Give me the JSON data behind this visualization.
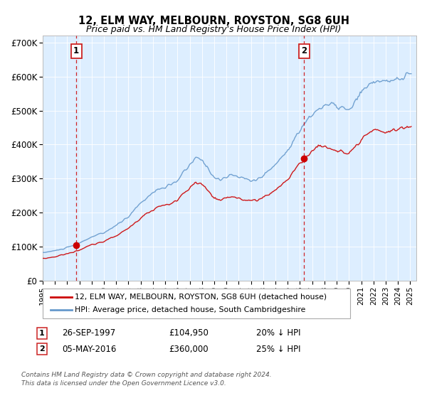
{
  "title": "12, ELM WAY, MELBOURN, ROYSTON, SG8 6UH",
  "subtitle": "Price paid vs. HM Land Registry's House Price Index (HPI)",
  "xlim": [
    1995.0,
    2025.5
  ],
  "ylim": [
    0,
    720000
  ],
  "yticks": [
    0,
    100000,
    200000,
    300000,
    400000,
    500000,
    600000,
    700000
  ],
  "ytick_labels": [
    "£0",
    "£100K",
    "£200K",
    "£300K",
    "£400K",
    "£500K",
    "£600K",
    "£700K"
  ],
  "xticks": [
    1995,
    1996,
    1997,
    1998,
    1999,
    2000,
    2001,
    2002,
    2003,
    2004,
    2005,
    2006,
    2007,
    2008,
    2009,
    2010,
    2011,
    2012,
    2013,
    2014,
    2015,
    2016,
    2017,
    2018,
    2019,
    2020,
    2021,
    2022,
    2023,
    2024,
    2025
  ],
  "sale1_x": 1997.74,
  "sale1_y": 104950,
  "sale1_label": "1",
  "sale1_date": "26-SEP-1997",
  "sale1_price": "£104,950",
  "sale1_hpi": "20% ↓ HPI",
  "sale2_x": 2016.34,
  "sale2_y": 360000,
  "sale2_label": "2",
  "sale2_date": "05-MAY-2016",
  "sale2_price": "£360,000",
  "sale2_hpi": "25% ↓ HPI",
  "red_color": "#cc0000",
  "blue_color": "#6699cc",
  "plot_bg": "#ddeeff",
  "legend_label_red": "12, ELM WAY, MELBOURN, ROYSTON, SG8 6UH (detached house)",
  "legend_label_blue": "HPI: Average price, detached house, South Cambridgeshire",
  "footnote1": "Contains HM Land Registry data © Crown copyright and database right 2024.",
  "footnote2": "This data is licensed under the Open Government Licence v3.0.",
  "hpi_keypoints": [
    [
      1995.0,
      82000
    ],
    [
      1995.5,
      85000
    ],
    [
      1996.0,
      88000
    ],
    [
      1996.5,
      92000
    ],
    [
      1997.0,
      97000
    ],
    [
      1997.5,
      103000
    ],
    [
      1998.0,
      110000
    ],
    [
      1998.5,
      120000
    ],
    [
      1999.0,
      128000
    ],
    [
      1999.5,
      135000
    ],
    [
      2000.0,
      140000
    ],
    [
      2000.5,
      152000
    ],
    [
      2001.0,
      162000
    ],
    [
      2001.5,
      175000
    ],
    [
      2002.0,
      188000
    ],
    [
      2002.5,
      210000
    ],
    [
      2003.0,
      228000
    ],
    [
      2003.5,
      245000
    ],
    [
      2004.0,
      258000
    ],
    [
      2004.5,
      270000
    ],
    [
      2005.0,
      275000
    ],
    [
      2005.5,
      280000
    ],
    [
      2006.0,
      295000
    ],
    [
      2006.5,
      318000
    ],
    [
      2007.0,
      340000
    ],
    [
      2007.5,
      360000
    ],
    [
      2008.0,
      355000
    ],
    [
      2008.5,
      330000
    ],
    [
      2009.0,
      305000
    ],
    [
      2009.5,
      295000
    ],
    [
      2010.0,
      305000
    ],
    [
      2010.5,
      310000
    ],
    [
      2011.0,
      305000
    ],
    [
      2011.5,
      300000
    ],
    [
      2012.0,
      295000
    ],
    [
      2012.5,
      298000
    ],
    [
      2013.0,
      308000
    ],
    [
      2013.5,
      325000
    ],
    [
      2014.0,
      342000
    ],
    [
      2014.5,
      362000
    ],
    [
      2015.0,
      385000
    ],
    [
      2015.5,
      415000
    ],
    [
      2016.0,
      440000
    ],
    [
      2016.5,
      468000
    ],
    [
      2017.0,
      488000
    ],
    [
      2017.5,
      505000
    ],
    [
      2018.0,
      515000
    ],
    [
      2018.5,
      518000
    ],
    [
      2019.0,
      512000
    ],
    [
      2019.5,
      508000
    ],
    [
      2020.0,
      498000
    ],
    [
      2020.5,
      525000
    ],
    [
      2021.0,
      552000
    ],
    [
      2021.5,
      572000
    ],
    [
      2022.0,
      585000
    ],
    [
      2022.5,
      590000
    ],
    [
      2023.0,
      582000
    ],
    [
      2023.5,
      586000
    ],
    [
      2024.0,
      592000
    ],
    [
      2024.5,
      600000
    ],
    [
      2025.0,
      608000
    ]
  ],
  "red_keypoints": [
    [
      1995.0,
      65000
    ],
    [
      1995.5,
      67000
    ],
    [
      1996.0,
      70000
    ],
    [
      1996.5,
      75000
    ],
    [
      1997.0,
      79000
    ],
    [
      1997.5,
      84000
    ],
    [
      1998.0,
      90000
    ],
    [
      1998.5,
      98000
    ],
    [
      1999.0,
      105000
    ],
    [
      1999.5,
      110000
    ],
    [
      2000.0,
      115000
    ],
    [
      2000.5,
      124000
    ],
    [
      2001.0,
      132000
    ],
    [
      2001.5,
      143000
    ],
    [
      2002.0,
      153000
    ],
    [
      2002.5,
      170000
    ],
    [
      2003.0,
      185000
    ],
    [
      2003.5,
      198000
    ],
    [
      2004.0,
      208000
    ],
    [
      2004.5,
      218000
    ],
    [
      2005.0,
      222000
    ],
    [
      2005.5,
      226000
    ],
    [
      2006.0,
      238000
    ],
    [
      2006.5,
      255000
    ],
    [
      2007.0,
      272000
    ],
    [
      2007.5,
      288000
    ],
    [
      2008.0,
      283000
    ],
    [
      2008.5,
      263000
    ],
    [
      2009.0,
      243000
    ],
    [
      2009.5,
      235000
    ],
    [
      2010.0,
      243000
    ],
    [
      2010.5,
      247000
    ],
    [
      2011.0,
      243000
    ],
    [
      2011.5,
      238000
    ],
    [
      2012.0,
      234000
    ],
    [
      2012.5,
      237000
    ],
    [
      2013.0,
      245000
    ],
    [
      2013.5,
      255000
    ],
    [
      2014.0,
      267000
    ],
    [
      2014.5,
      282000
    ],
    [
      2015.0,
      298000
    ],
    [
      2015.5,
      322000
    ],
    [
      2016.0,
      342000
    ],
    [
      2016.5,
      365000
    ],
    [
      2017.0,
      382000
    ],
    [
      2017.5,
      395000
    ],
    [
      2018.0,
      395000
    ],
    [
      2018.5,
      388000
    ],
    [
      2019.0,
      383000
    ],
    [
      2019.5,
      378000
    ],
    [
      2020.0,
      370000
    ],
    [
      2020.5,
      390000
    ],
    [
      2021.0,
      412000
    ],
    [
      2021.5,
      428000
    ],
    [
      2022.0,
      440000
    ],
    [
      2022.5,
      445000
    ],
    [
      2023.0,
      435000
    ],
    [
      2023.5,
      440000
    ],
    [
      2024.0,
      445000
    ],
    [
      2024.5,
      450000
    ],
    [
      2025.0,
      455000
    ]
  ]
}
